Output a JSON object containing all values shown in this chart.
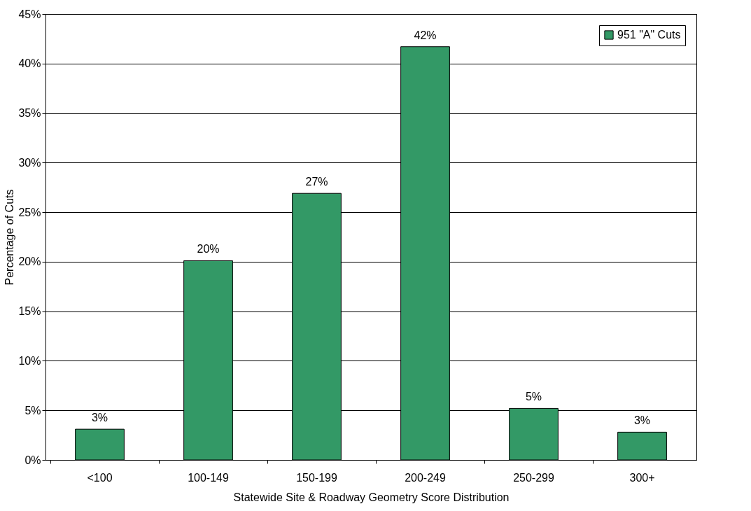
{
  "chart_data": {
    "type": "bar",
    "xlabel": "Statewide Site & Roadway Geometry Score Distribution",
    "ylabel": "Percentage of Cuts",
    "categories": [
      "<100",
      "100-149",
      "150-199",
      "200-249",
      "250-299",
      "300+"
    ],
    "series": [
      {
        "name": "951 \"A\" Cuts",
        "color": "#339966",
        "values": [
          3.1,
          20.1,
          26.9,
          41.7,
          5.2,
          2.8
        ],
        "value_labels": [
          "3%",
          "20%",
          "27%",
          "42%",
          "5%",
          "3%"
        ]
      }
    ],
    "ylim": [
      0,
      45
    ],
    "yticks": [
      {
        "value": 0,
        "label": "0%"
      },
      {
        "value": 5,
        "label": "5%"
      },
      {
        "value": 10,
        "label": "10%"
      },
      {
        "value": 15,
        "label": "15%"
      },
      {
        "value": 20,
        "label": "20%"
      },
      {
        "value": 25,
        "label": "25%"
      },
      {
        "value": 30,
        "label": "30%"
      },
      {
        "value": 35,
        "label": "35%"
      },
      {
        "value": 40,
        "label": "40%"
      },
      {
        "value": 45,
        "label": "45%"
      }
    ],
    "grid": "y",
    "legend": "top right"
  }
}
